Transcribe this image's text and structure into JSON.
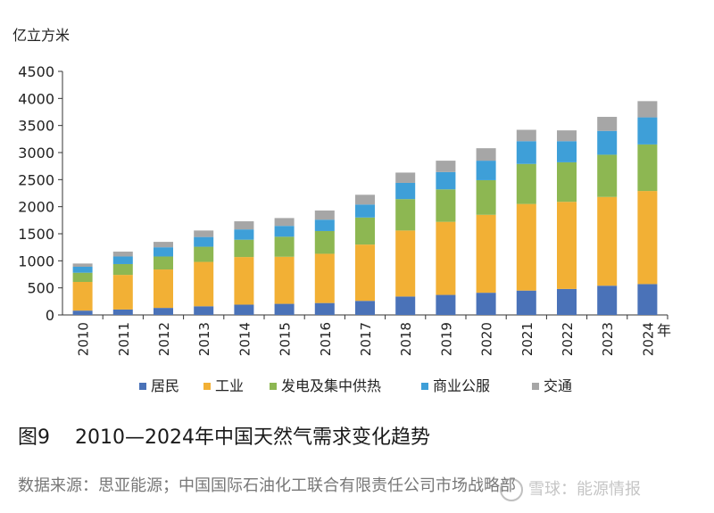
{
  "chart_data": {
    "type": "bar",
    "stacked": true,
    "ylabel": "亿立方米",
    "xlabel": "年",
    "ylim": [
      0,
      4500
    ],
    "yticks": [
      0,
      500,
      1000,
      1500,
      2000,
      2500,
      3000,
      3500,
      4000,
      4500
    ],
    "grid": false,
    "legend_position": "bottom",
    "categories": [
      "2010",
      "2011",
      "2012",
      "2013",
      "2014",
      "2015",
      "2016",
      "2017",
      "2018",
      "2019",
      "2020",
      "2021",
      "2022",
      "2023",
      "2024"
    ],
    "series": [
      {
        "name": "居民",
        "color": "#4a72b8",
        "values": [
          80,
          100,
          130,
          160,
          190,
          205,
          220,
          260,
          340,
          370,
          410,
          450,
          480,
          540,
          570
        ]
      },
      {
        "name": "工业",
        "color": "#f2b035",
        "values": [
          530,
          640,
          710,
          820,
          880,
          870,
          910,
          1040,
          1220,
          1350,
          1440,
          1600,
          1610,
          1640,
          1720
        ]
      },
      {
        "name": "发电及集中供热",
        "color": "#8db752",
        "values": [
          170,
          200,
          240,
          280,
          320,
          370,
          420,
          500,
          580,
          600,
          640,
          740,
          730,
          780,
          860
        ]
      },
      {
        "name": "商业公服",
        "color": "#3e9fd8",
        "values": [
          110,
          140,
          170,
          180,
          190,
          200,
          210,
          240,
          300,
          320,
          360,
          420,
          390,
          440,
          500
        ]
      },
      {
        "name": "交通",
        "color": "#a6a6a6",
        "values": [
          60,
          90,
          100,
          120,
          150,
          145,
          170,
          180,
          190,
          210,
          230,
          210,
          200,
          260,
          300
        ]
      }
    ]
  },
  "caption": {
    "number": "图9",
    "title": "2010—2024年中国天然气需求变化趋势"
  },
  "source": "数据来源：思亚能源；中国国际石油化工联合有限责任公司市场战略部",
  "watermark": "雪球：能源情报"
}
